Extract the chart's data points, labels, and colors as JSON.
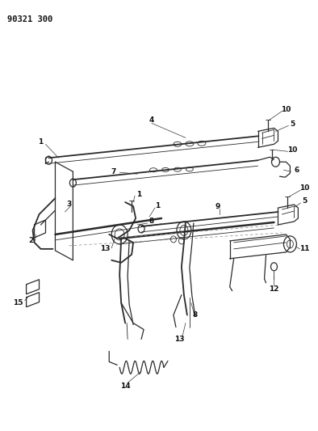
{
  "title": "90321 300",
  "bg_color": "#ffffff",
  "line_color": "#2a2a2a",
  "text_color": "#111111",
  "fig_w": 3.94,
  "fig_h": 5.33,
  "dpi": 100,
  "lw_thin": 0.6,
  "lw_med": 0.9,
  "lw_thick": 1.3,
  "lw_xthick": 1.8,
  "label_fontsize": 6.5
}
